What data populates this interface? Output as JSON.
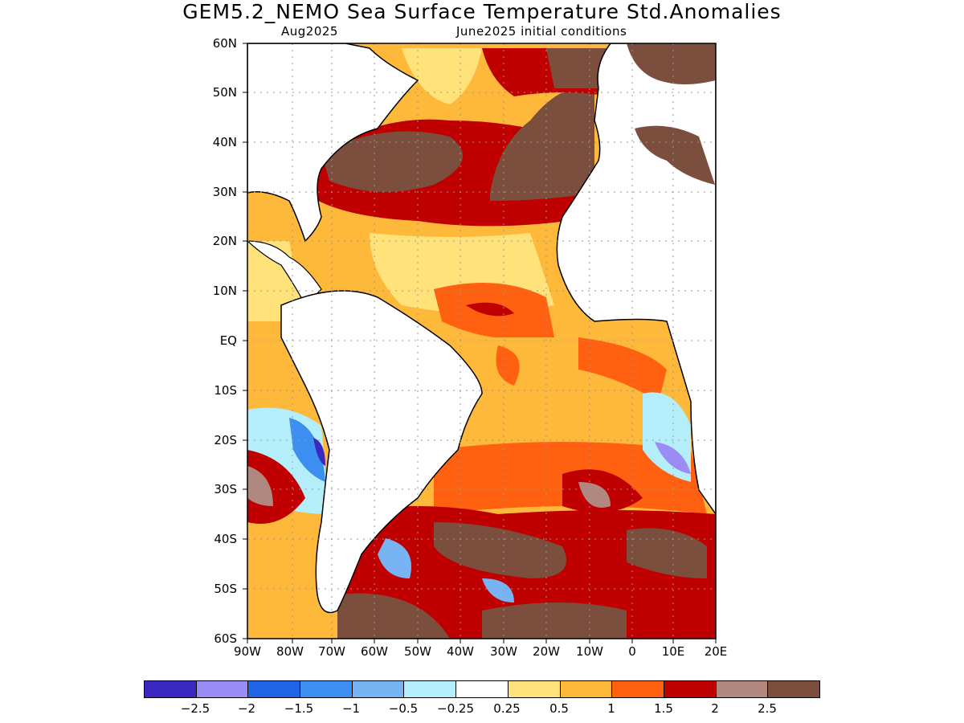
{
  "title": "GEM5.2_NEMO Sea Surface Temperature Std.Anomalies",
  "valid_month": "Aug2025",
  "init": "June2025 initial conditions",
  "lat_labels": [
    "60N",
    "50N",
    "40N",
    "30N",
    "20N",
    "10N",
    "EQ",
    "10S",
    "20S",
    "30S",
    "40S",
    "50S",
    "60S"
  ],
  "lon_labels": [
    "90W",
    "80W",
    "70W",
    "60W",
    "50W",
    "40W",
    "30W",
    "20W",
    "10W",
    "0",
    "10E",
    "20E"
  ],
  "colorbar": {
    "colors": [
      "#3b28c0",
      "#9b8bf5",
      "#1f63e6",
      "#3c8ff0",
      "#78b4f4",
      "#b4eefa",
      "#ffffff",
      "#ffe27a",
      "#ffb93a",
      "#ff6110",
      "#c00000",
      "#b08880",
      "#7b4e3e"
    ],
    "labels": [
      "−2.5",
      "−2",
      "−1.5",
      "−1",
      "−0.5",
      "−0.25",
      "0.25",
      "0.5",
      "1",
      "1.5",
      "2",
      "2.5"
    ]
  },
  "legend_colors": {
    "land": "#ffffff",
    "coast": "#000000",
    "grid": "#999999"
  }
}
